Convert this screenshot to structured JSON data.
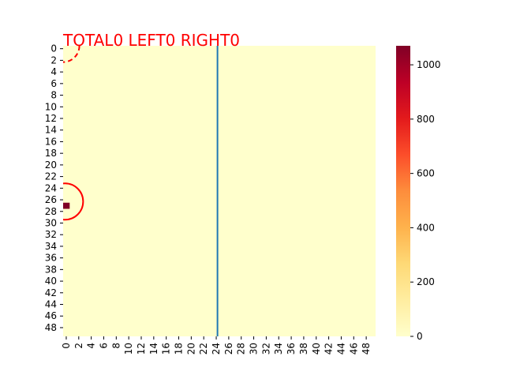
{
  "chart_data": {
    "type": "heatmap",
    "title": "TOTAL0  LEFT0 RIGHT0",
    "title_color": "#ff0000",
    "grid_rows": 50,
    "grid_cols": 50,
    "background_value": 0,
    "cells": [
      {
        "row": 27,
        "col": 0,
        "value": 1070
      }
    ],
    "x_ticks": [
      "0",
      "2",
      "4",
      "6",
      "8",
      "10",
      "12",
      "14",
      "16",
      "18",
      "20",
      "22",
      "24",
      "26",
      "28",
      "30",
      "32",
      "34",
      "36",
      "38",
      "40",
      "42",
      "44",
      "46",
      "48"
    ],
    "y_ticks": [
      "0",
      "2",
      "4",
      "6",
      "8",
      "10",
      "12",
      "14",
      "16",
      "18",
      "20",
      "22",
      "24",
      "26",
      "28",
      "30",
      "32",
      "34",
      "36",
      "38",
      "40",
      "42",
      "44",
      "46",
      "48"
    ],
    "colorbar": {
      "min": 0,
      "max": 1070,
      "ticks": [
        "0",
        "200",
        "400",
        "600",
        "800",
        "1000"
      ],
      "colormap": "YlOrRd"
    },
    "vertical_line": {
      "x": 24.7,
      "color": "#1f77b4"
    },
    "annotations": [
      {
        "type": "dashed-arc",
        "center_x": 0,
        "center_y": 0,
        "radius": 2.6,
        "color": "#ff0000"
      },
      {
        "type": "solid-arc",
        "center_x": 0.3,
        "center_y": 26.8,
        "radius": 2.9,
        "color": "#ff0000"
      }
    ]
  }
}
